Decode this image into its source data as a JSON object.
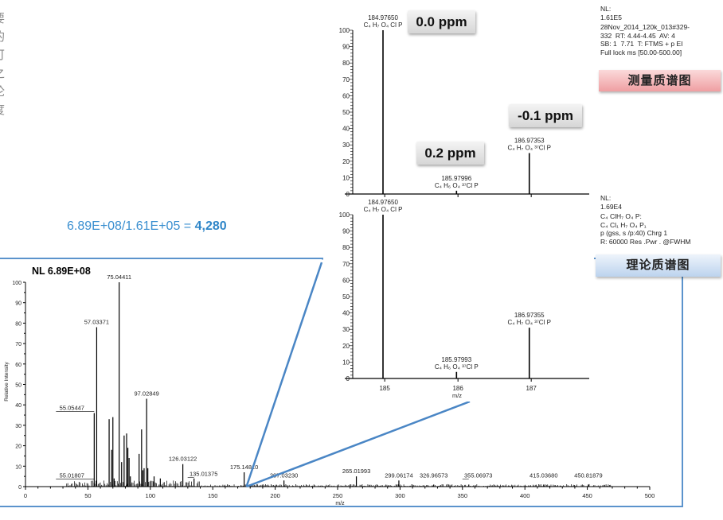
{
  "side_text": [
    "要",
    "的",
    "可",
    "之",
    "论",
    "度"
  ],
  "ratio": {
    "expression": "6.89E+08/1.61E+05 = ",
    "result": "4,280"
  },
  "badges": {
    "top_peak": "0.0 ppm",
    "mid_peak": "0.2 ppm",
    "right_peak": "-0.1 ppm"
  },
  "measured_info": [
    "NL:",
    "1.61E5",
    "28Nov_2014_120k_013#329-",
    "332  RT: 4.44-4.45  AV: 4",
    "SB: 1  7.71  T: FTMS + p EI",
    "Full lock ms [50.00-500.00]"
  ],
  "theoretical_info": [
    "NL:",
    "1.69E4",
    "C₄ ClH₇ O₄ P:",
    "C₄ Cl₁ H₇ O₄ P₁",
    "p (gss, s /p:40) Chrg 1",
    "R: 60000 Res .Pwr . @FWHM"
  ],
  "tags": {
    "measured": "测量质谱图",
    "theoretical": "理论质谱图",
    "measured_color": "#f4b6b8",
    "theoretical_color": "#cfe0f3"
  },
  "colors": {
    "zoom_lines": "#4a86c5",
    "ratio_text": "#3a8fd0",
    "panel_border": "#5b93cc"
  },
  "chart_data": [
    {
      "id": "measured",
      "type": "bar",
      "xlim": [
        184.4,
        187.8
      ],
      "ylim": [
        0,
        100
      ],
      "yticks": [
        0,
        10,
        20,
        30,
        40,
        50,
        60,
        70,
        80,
        90,
        100
      ],
      "xticks": [
        185,
        186,
        187
      ],
      "peaks": [
        {
          "mz": 184.9765,
          "rel": 100,
          "label": "184.97650",
          "formula": "C₄ H₇ O₄ Cl P"
        },
        {
          "mz": 185.97996,
          "rel": 2,
          "label": "185.97996",
          "formula": "C₄ H₆ O₄ ³⁷Cl P"
        },
        {
          "mz": 186.97353,
          "rel": 25,
          "label": "186.97353",
          "formula": "C₄ H₇ O₄ ³⁷Cl P"
        }
      ]
    },
    {
      "id": "theoretical",
      "type": "bar",
      "xlim": [
        184.4,
        187.8
      ],
      "ylim": [
        0,
        100
      ],
      "xlabel": "m/z",
      "yticks": [
        0,
        10,
        20,
        30,
        40,
        50,
        60,
        70,
        80,
        90,
        100
      ],
      "xticks": [
        185,
        186,
        187
      ],
      "peaks": [
        {
          "mz": 184.9765,
          "rel": 100,
          "label": "184.97650",
          "formula": "C₄ H₇ O₄ Cl P"
        },
        {
          "mz": 185.97993,
          "rel": 4,
          "label": "185.97993",
          "formula": "C₄ H₆ O₄ ³⁷Cl P"
        },
        {
          "mz": 186.97355,
          "rel": 31,
          "label": "186.97355",
          "formula": "C₄ H₇ O₄ ³⁷Cl P"
        }
      ]
    },
    {
      "id": "full",
      "type": "bar",
      "title": "NL 6.89E+08",
      "xlabel": "m/z",
      "ylabel": "Relative Intensity",
      "xlim": [
        0,
        500
      ],
      "ylim": [
        0,
        100
      ],
      "yticks": [
        0,
        10,
        20,
        30,
        40,
        50,
        60,
        70,
        80,
        90,
        100
      ],
      "xticks": [
        0,
        50,
        100,
        150,
        200,
        250,
        300,
        350,
        400,
        450,
        500
      ],
      "peaks": [
        {
          "mz": 55.01807,
          "rel": 2,
          "label": "55.01807"
        },
        {
          "mz": 55.05447,
          "rel": 36,
          "label": "55.05447"
        },
        {
          "mz": 57.03371,
          "rel": 78,
          "label": "57.03371"
        },
        {
          "mz": 75.04411,
          "rel": 100,
          "label": "75.04411"
        },
        {
          "mz": 97.02849,
          "rel": 43,
          "label": "97.02849"
        },
        {
          "mz": 126.03122,
          "rel": 11,
          "label": "126.03122"
        },
        {
          "mz": 135.01375,
          "rel": 4,
          "label": "135.01375"
        },
        {
          "mz": 175.1481,
          "rel": 7,
          "label": "175.14810"
        },
        {
          "mz": 207.0323,
          "rel": 3,
          "label": "207.03230"
        },
        {
          "mz": 265.01993,
          "rel": 5,
          "label": "265.01993"
        },
        {
          "mz": 299.06174,
          "rel": 3,
          "label": "299.06174"
        },
        {
          "mz": 326.96573,
          "rel": 1,
          "label": "326.96573"
        },
        {
          "mz": 355.06973,
          "rel": 1,
          "label": "355.06973"
        },
        {
          "mz": 415.0368,
          "rel": 1,
          "label": "415.03680"
        },
        {
          "mz": 450.81879,
          "rel": 1,
          "label": "450.81879"
        },
        {
          "mz": 67,
          "rel": 33
        },
        {
          "mz": 69,
          "rel": 18
        },
        {
          "mz": 70,
          "rel": 34
        },
        {
          "mz": 71,
          "rel": 4
        },
        {
          "mz": 77,
          "rel": 12
        },
        {
          "mz": 79,
          "rel": 25
        },
        {
          "mz": 81,
          "rel": 26
        },
        {
          "mz": 82,
          "rel": 19
        },
        {
          "mz": 83,
          "rel": 14
        },
        {
          "mz": 84,
          "rel": 5
        },
        {
          "mz": 91,
          "rel": 16
        },
        {
          "mz": 93,
          "rel": 28
        },
        {
          "mz": 94,
          "rel": 8
        },
        {
          "mz": 95,
          "rel": 9
        },
        {
          "mz": 98,
          "rel": 9
        },
        {
          "mz": 103,
          "rel": 5
        },
        {
          "mz": 108,
          "rel": 4
        }
      ]
    }
  ]
}
